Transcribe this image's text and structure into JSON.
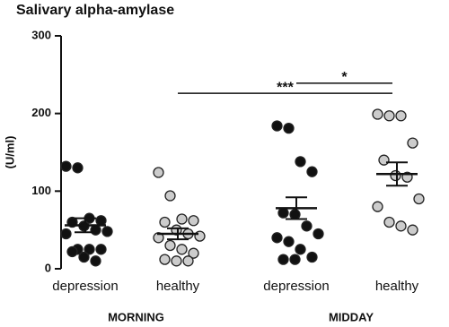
{
  "chart_data": {
    "type": "dot",
    "title": "Salivary alpha-amylase",
    "y_label": "(U/ml)",
    "categories": [
      "depression",
      "healthy",
      "depression",
      "healthy"
    ],
    "group_labels": [
      "MORNING",
      "MIDDAY"
    ],
    "colors": [
      "#111111",
      "#cccccc",
      "#111111",
      "#cccccc"
    ],
    "points": [
      [
        132,
        130,
        65,
        62,
        60,
        55,
        50,
        48,
        45,
        25,
        25,
        25,
        22,
        15,
        10
      ],
      [
        124,
        94,
        64,
        62,
        60,
        50,
        45,
        42,
        40,
        30,
        25,
        20,
        12,
        10,
        10
      ],
      [
        184,
        181,
        138,
        125,
        72,
        70,
        55,
        45,
        40,
        35,
        25,
        15,
        12,
        12
      ],
      [
        199,
        197,
        197,
        162,
        140,
        120,
        118,
        90,
        80,
        60,
        55,
        50
      ]
    ],
    "means": [
      56,
      45,
      78,
      122
    ],
    "sem": [
      9,
      7,
      14,
      15
    ],
    "ylim": [
      0,
      300
    ],
    "yticks": [
      0,
      100,
      200,
      300
    ],
    "annotations": [
      {
        "text": "***",
        "from": 1,
        "to": 3,
        "y": 226
      },
      {
        "text": "*",
        "from": 2,
        "to": 3,
        "y": 239
      }
    ]
  }
}
